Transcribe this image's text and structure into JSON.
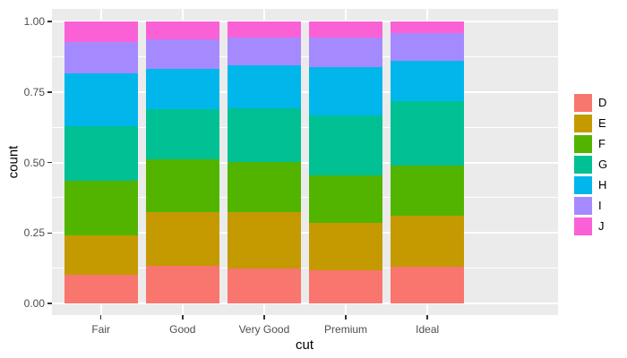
{
  "chart_data": {
    "type": "bar",
    "stacking": "fill",
    "orientation": "vertical",
    "xlabel": "cut",
    "ylabel": "count",
    "categories": [
      "Fair",
      "Good",
      "Very Good",
      "Premium",
      "Ideal"
    ],
    "series": [
      {
        "name": "D",
        "color": "#F8766D",
        "values": [
          0.1012,
          0.1349,
          0.1252,
          0.1162,
          0.1315
        ]
      },
      {
        "name": "E",
        "color": "#C49A00",
        "values": [
          0.1391,
          0.1902,
          0.1986,
          0.1695,
          0.1811
        ]
      },
      {
        "name": "F",
        "color": "#53B400",
        "values": [
          0.1938,
          0.1853,
          0.1791,
          0.169,
          0.1775
        ]
      },
      {
        "name": "G",
        "color": "#00C094",
        "values": [
          0.195,
          0.1775,
          0.1903,
          0.212,
          0.2266
        ]
      },
      {
        "name": "H",
        "color": "#00B6EB",
        "values": [
          0.1882,
          0.1431,
          0.151,
          0.1711,
          0.1445
        ]
      },
      {
        "name": "I",
        "color": "#A58AFF",
        "values": [
          0.1087,
          0.1064,
          0.0996,
          0.1036,
          0.0971
        ]
      },
      {
        "name": "J",
        "color": "#FB61D7",
        "values": [
          0.0739,
          0.0626,
          0.0561,
          0.0586,
          0.0416
        ]
      }
    ],
    "ylim": [
      0,
      1
    ],
    "y_ticks": [
      {
        "value": 0.0,
        "label": "0.00"
      },
      {
        "value": 0.25,
        "label": "0.25"
      },
      {
        "value": 0.5,
        "label": "0.50"
      },
      {
        "value": 0.75,
        "label": "0.75"
      },
      {
        "value": 1.0,
        "label": "1.00"
      }
    ],
    "y_minor_ticks": [
      0.125,
      0.375,
      0.625,
      0.875
    ],
    "grid": true,
    "legend_position": "right",
    "legend_labels": [
      "D",
      "E",
      "F",
      "G",
      "H",
      "I",
      "J"
    ]
  },
  "theme": {
    "background": "#FFFFFF",
    "panel_background": "#EBEBEB",
    "grid_color": "#FFFFFF",
    "tick_mark_color": "#333333",
    "tick_label_color": "#4D4D4D",
    "axis_title_color": "#000000"
  }
}
